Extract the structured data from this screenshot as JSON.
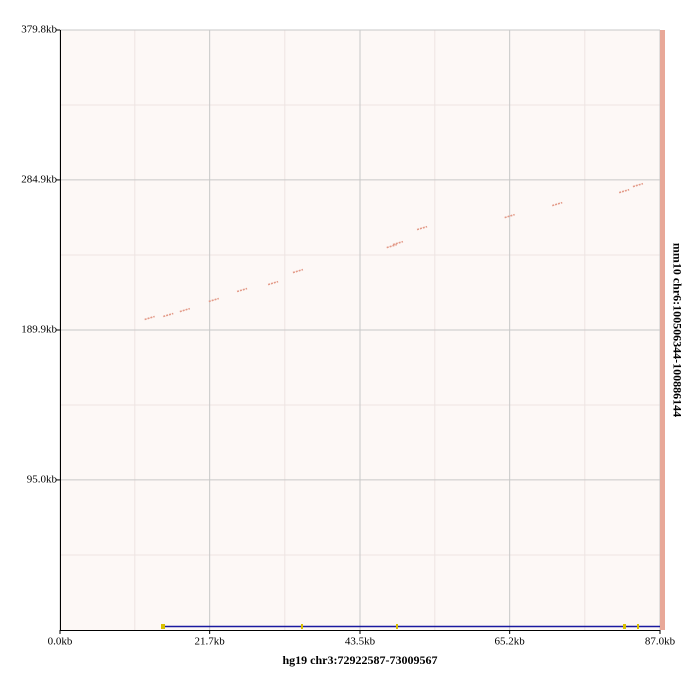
{
  "chart_data": {
    "type": "scatter",
    "x_label": "hg19 chr3:72922587-73009567",
    "y_label": "mm10 chr6:100506344-100886144",
    "xlim": [
      0,
      87.0
    ],
    "ylim": [
      0,
      379.8
    ],
    "xticks": [
      {
        "value": 0,
        "label": "0.0kb"
      },
      {
        "value": 21.7,
        "label": "21.7kb"
      },
      {
        "value": 43.5,
        "label": "43.5kb"
      },
      {
        "value": 65.2,
        "label": "65.2kb"
      },
      {
        "value": 87.0,
        "label": "87.0kb"
      }
    ],
    "yticks": [
      {
        "value": 95.0,
        "label": "95.0kb"
      },
      {
        "value": 189.9,
        "label": "189.9kb"
      },
      {
        "value": 284.9,
        "label": "284.9kb"
      },
      {
        "value": 379.8,
        "label": "379.8kb"
      }
    ],
    "grid": true,
    "color": "#e39a88",
    "x": [
      13.0,
      15.7,
      18.1,
      22.3,
      26.4,
      30.9,
      34.5,
      48.1,
      49.0,
      52.5,
      65.2,
      72.1,
      81.8,
      83.8
    ],
    "y": [
      197.5,
      199.4,
      202.5,
      208.9,
      215.2,
      219.6,
      227.2,
      243.0,
      244.9,
      254.4,
      262.0,
      269.6,
      277.8,
      281.6
    ]
  }
}
